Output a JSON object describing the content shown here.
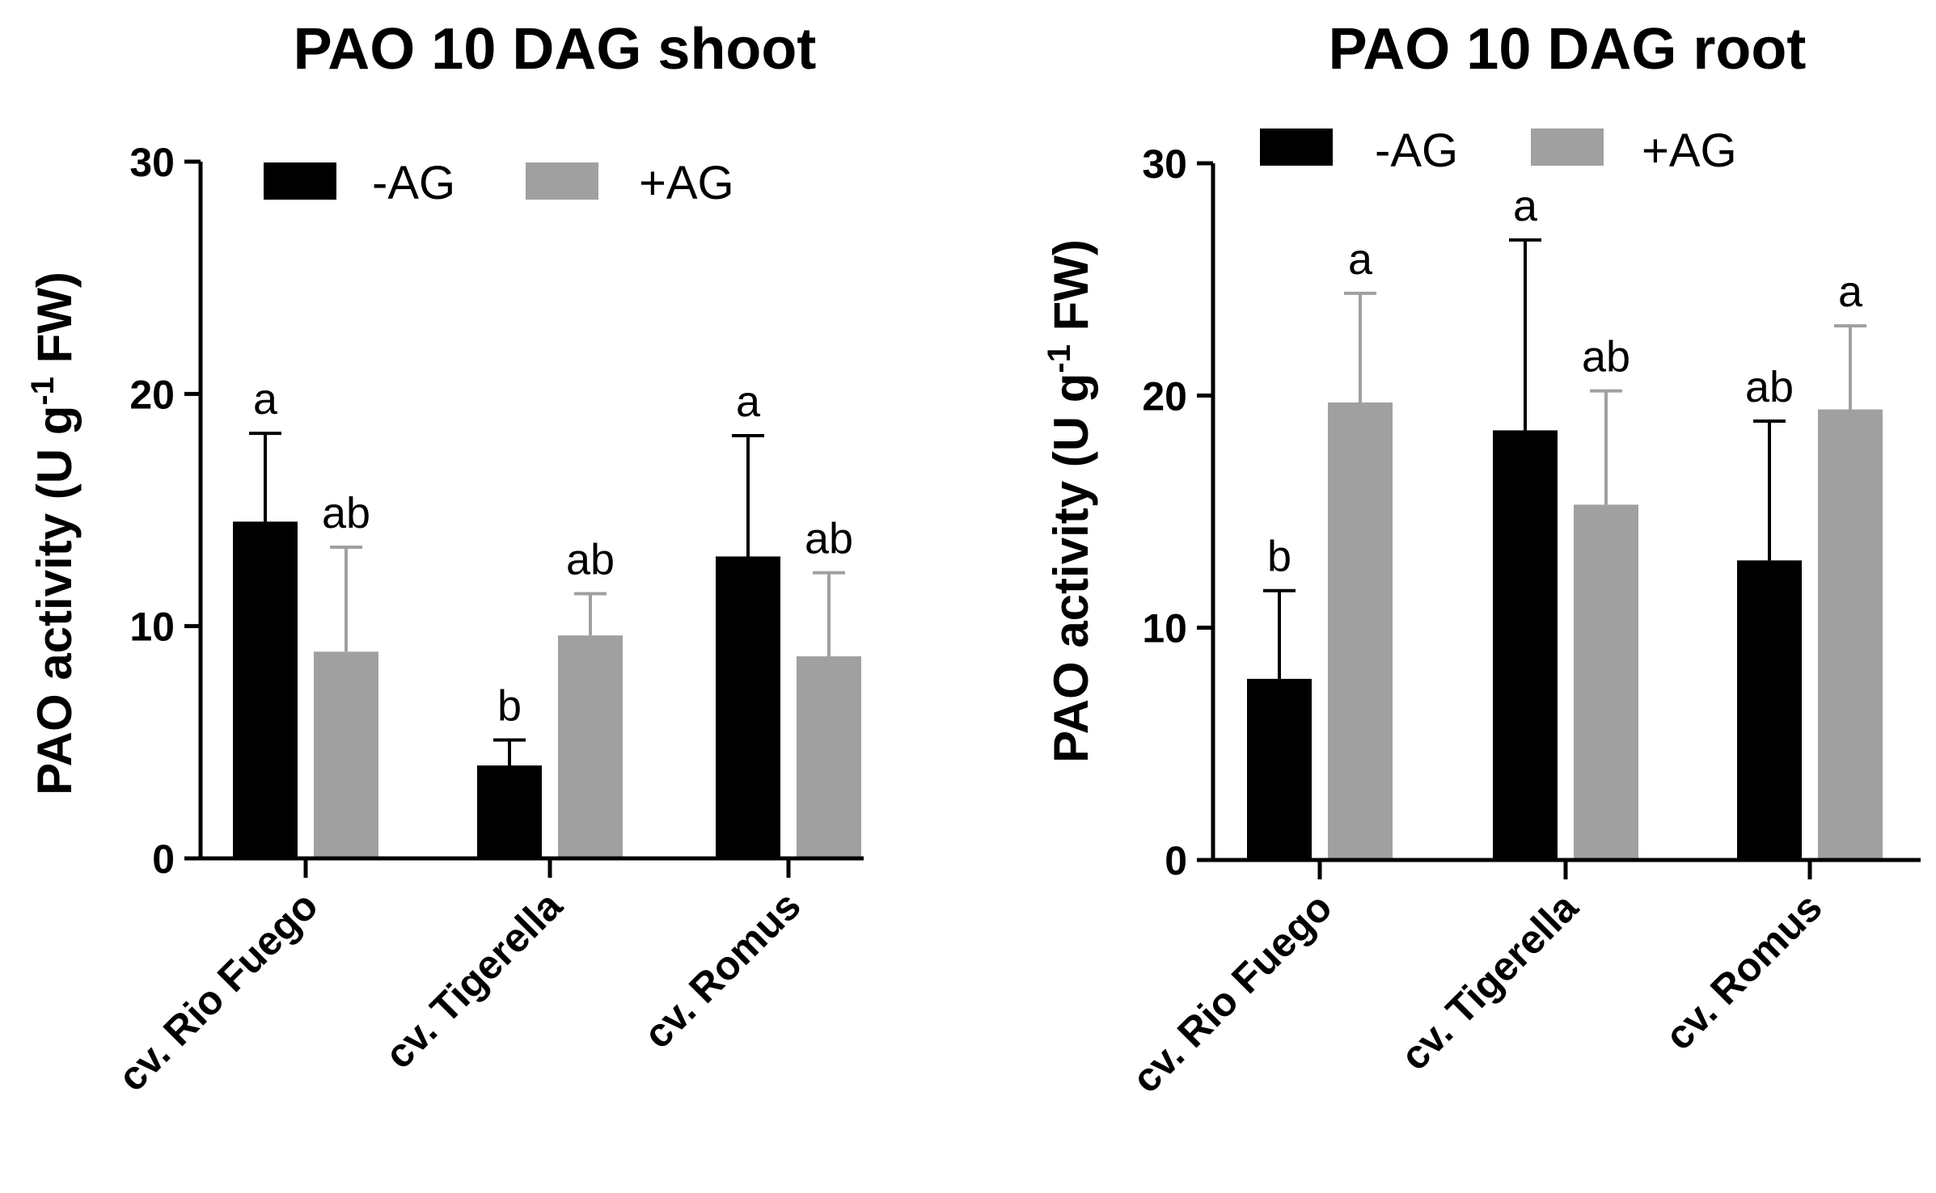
{
  "colors": {
    "minus_ag": "#000000",
    "plus_ag": "#a0a0a0"
  },
  "chart_data": [
    {
      "type": "bar",
      "title": "PAO 10 DAG shoot",
      "ylabel_main": "PAO activity (U g",
      "ylabel_sup": "-1",
      "ylabel_end": " FW)",
      "xlabel": "",
      "ylim": [
        0,
        30
      ],
      "yticks": [
        "0",
        "10",
        "20",
        "30"
      ],
      "categories": [
        "cv. Rio Fuego",
        "cv. Tigerella",
        "cv. Romus"
      ],
      "legend_position": "top",
      "series": [
        {
          "name": "-AG",
          "values": [
            14.5,
            4.0,
            13.0
          ],
          "errors": [
            3.8,
            1.1,
            5.2
          ],
          "letters": [
            "a",
            "b",
            "a"
          ]
        },
        {
          "name": "+AG",
          "values": [
            8.9,
            9.6,
            8.7
          ],
          "errors": [
            4.5,
            1.8,
            3.6
          ],
          "letters": [
            "ab",
            "ab",
            "ab"
          ]
        }
      ]
    },
    {
      "type": "bar",
      "title": "PAO 10 DAG root",
      "ylabel_main": "PAO activity (U g",
      "ylabel_sup": "-1",
      "ylabel_end": " FW)",
      "xlabel": "",
      "ylim": [
        0,
        30
      ],
      "yticks": [
        "0",
        "10",
        "20",
        "30"
      ],
      "categories": [
        "cv. Rio Fuego",
        "cv. Tigerella",
        "cv. Romus"
      ],
      "legend_position": "top",
      "series": [
        {
          "name": "-AG",
          "values": [
            7.8,
            18.5,
            12.9
          ],
          "errors": [
            3.8,
            8.2,
            6.0
          ],
          "letters": [
            "b",
            "a",
            "ab"
          ]
        },
        {
          "name": "+AG",
          "values": [
            19.7,
            15.3,
            19.4
          ],
          "errors": [
            4.7,
            4.9,
            3.6
          ],
          "letters": [
            "a",
            "ab",
            "a"
          ]
        }
      ]
    }
  ]
}
